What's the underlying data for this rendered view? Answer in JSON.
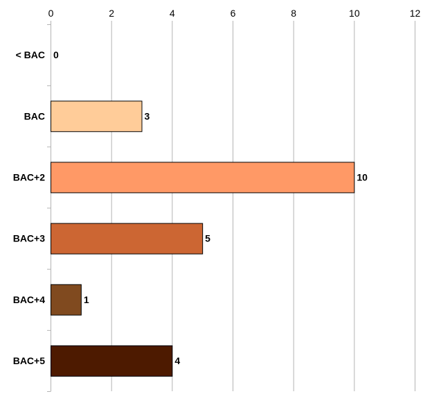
{
  "chart_data": {
    "type": "bar",
    "orientation": "horizontal",
    "categories": [
      "< BAC",
      "BAC",
      "BAC+2",
      "BAC+3",
      "BAC+4",
      "BAC+5"
    ],
    "values": [
      0,
      3,
      10,
      5,
      1,
      4
    ],
    "value_labels": [
      "0",
      "3",
      "10",
      "5",
      "1",
      "4"
    ],
    "colors": [
      "#ffffff",
      "#ffcc99",
      "#ff9966",
      "#cc6633",
      "#804a1f",
      "#4d1a00"
    ],
    "xticks": [
      "0",
      "2",
      "4",
      "6",
      "8",
      "10",
      "12"
    ],
    "xlim": [
      0,
      12
    ],
    "x_axis_position": "top",
    "grid": true,
    "title": "",
    "xlabel": "",
    "ylabel": ""
  }
}
